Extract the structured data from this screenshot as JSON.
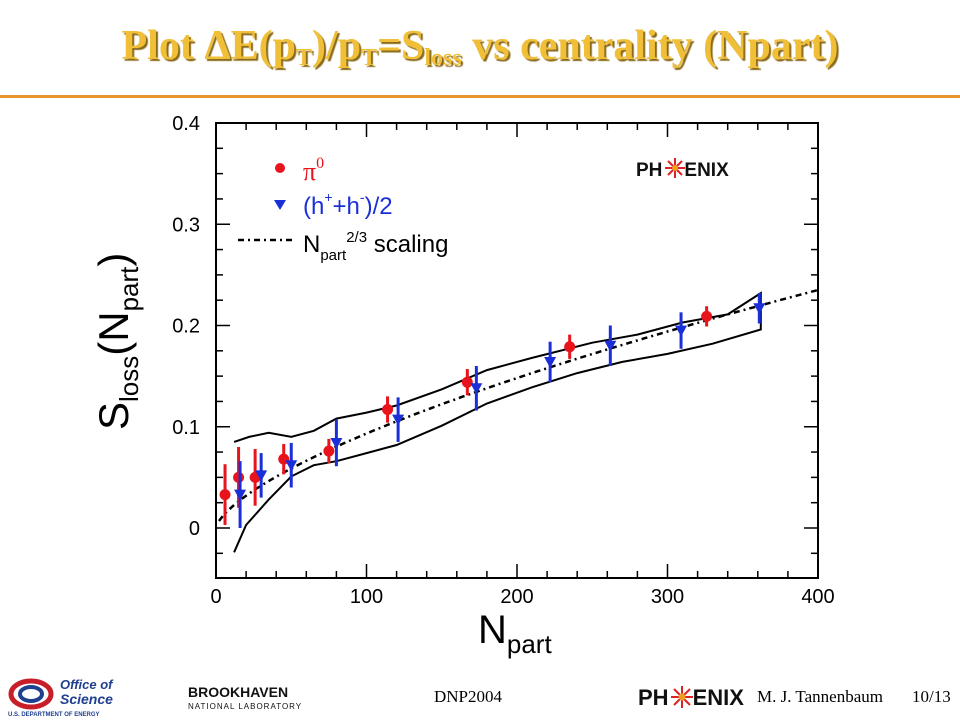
{
  "slide": {
    "title_parts": {
      "pre": "Plot ΔE(p",
      "sub1": "T",
      "mid1": ")/p",
      "sub2": "T",
      "mid2": "=S",
      "sub3": "loss",
      "post": " vs centrality (Npart)"
    },
    "colors": {
      "title": "#f0bf37",
      "rule": "#e7962b",
      "pi0": "#e8141c",
      "hadron": "#1a2fd8"
    }
  },
  "chart_data": {
    "type": "scatter",
    "title": "",
    "xlabel_main": "N",
    "xlabel_sub": "part",
    "ylabel_main": "S",
    "ylabel_sub1": "loss",
    "ylabel_mid": "(N",
    "ylabel_sub2": "part",
    "ylabel_end": ")",
    "xlim": [
      0,
      400
    ],
    "ylim": [
      -0.05,
      0.4
    ],
    "xticks": [
      0,
      100,
      200,
      300,
      400
    ],
    "yticks": [
      0,
      0.1,
      0.2,
      0.3,
      0.4
    ],
    "xtick_labels": [
      "0",
      "100",
      "200",
      "300",
      "400"
    ],
    "ytick_labels": [
      "0",
      "0.1",
      "0.2",
      "0.3",
      "0.4"
    ],
    "legend_placement": "top-left",
    "grid": false,
    "series": [
      {
        "name_main": "π",
        "name_sup": "0",
        "marker": "circle",
        "color": "#e8141c",
        "points": [
          {
            "x": 6,
            "y": 0.033,
            "err": 0.03
          },
          {
            "x": 15,
            "y": 0.05,
            "err": 0.03
          },
          {
            "x": 26,
            "y": 0.05,
            "err": 0.028
          },
          {
            "x": 45,
            "y": 0.068,
            "err": 0.015
          },
          {
            "x": 75,
            "y": 0.076,
            "err": 0.012
          },
          {
            "x": 114,
            "y": 0.117,
            "err": 0.013
          },
          {
            "x": 167,
            "y": 0.144,
            "err": 0.013
          },
          {
            "x": 235,
            "y": 0.179,
            "err": 0.012
          },
          {
            "x": 326,
            "y": 0.209,
            "err": 0.01
          }
        ]
      },
      {
        "name_main": "(h",
        "name_sup1": "+",
        "name_mid": "+h",
        "name_sup2": "-",
        "name_end": ")/2",
        "marker": "triangle-down",
        "color": "#1a2fd8",
        "points": [
          {
            "x": 16,
            "y": 0.033,
            "err": 0.033
          },
          {
            "x": 30,
            "y": 0.052,
            "err": 0.022
          },
          {
            "x": 50,
            "y": 0.062,
            "err": 0.022
          },
          {
            "x": 80,
            "y": 0.084,
            "err": 0.023
          },
          {
            "x": 121,
            "y": 0.107,
            "err": 0.022
          },
          {
            "x": 173,
            "y": 0.138,
            "err": 0.022
          },
          {
            "x": 222,
            "y": 0.164,
            "err": 0.02
          },
          {
            "x": 262,
            "y": 0.18,
            "err": 0.02
          },
          {
            "x": 309,
            "y": 0.195,
            "err": 0.018
          },
          {
            "x": 361,
            "y": 0.217,
            "err": 0.015
          }
        ]
      }
    ],
    "scaling_curve": {
      "label_main": "N",
      "label_sub": "part",
      "label_sup": "2/3",
      "label_end": " scaling",
      "coef": 0.00433,
      "x_range": [
        2,
        400
      ]
    },
    "band_upper": [
      [
        12,
        0.085
      ],
      [
        22,
        0.09
      ],
      [
        35,
        0.094
      ],
      [
        50,
        0.09
      ],
      [
        65,
        0.096
      ],
      [
        80,
        0.108
      ],
      [
        100,
        0.114
      ],
      [
        120,
        0.121
      ],
      [
        150,
        0.137
      ],
      [
        180,
        0.156
      ],
      [
        210,
        0.168
      ],
      [
        250,
        0.183
      ],
      [
        280,
        0.191
      ],
      [
        310,
        0.203
      ],
      [
        340,
        0.211
      ],
      [
        362,
        0.232
      ]
    ],
    "band_lower": [
      [
        12,
        -0.024
      ],
      [
        20,
        0.003
      ],
      [
        35,
        0.028
      ],
      [
        50,
        0.051
      ],
      [
        65,
        0.062
      ],
      [
        80,
        0.066
      ],
      [
        100,
        0.074
      ],
      [
        120,
        0.082
      ],
      [
        150,
        0.101
      ],
      [
        180,
        0.123
      ],
      [
        210,
        0.139
      ],
      [
        240,
        0.153
      ],
      [
        270,
        0.164
      ],
      [
        300,
        0.172
      ],
      [
        330,
        0.182
      ],
      [
        362,
        0.196
      ]
    ]
  },
  "logos": {
    "phenix_left": "PH",
    "phenix_right": "ENIX",
    "doe_line1": "Office of",
    "doe_line2": "Science",
    "doe_line3": "U.S. DEPARTMENT OF ENERGY",
    "bnl_line1": "BROOKHAVEN",
    "bnl_line2": "NATIONAL LABORATORY"
  },
  "footer": {
    "conference": "DNP2004",
    "author": "M. J. Tannenbaum",
    "page": "10/13"
  }
}
